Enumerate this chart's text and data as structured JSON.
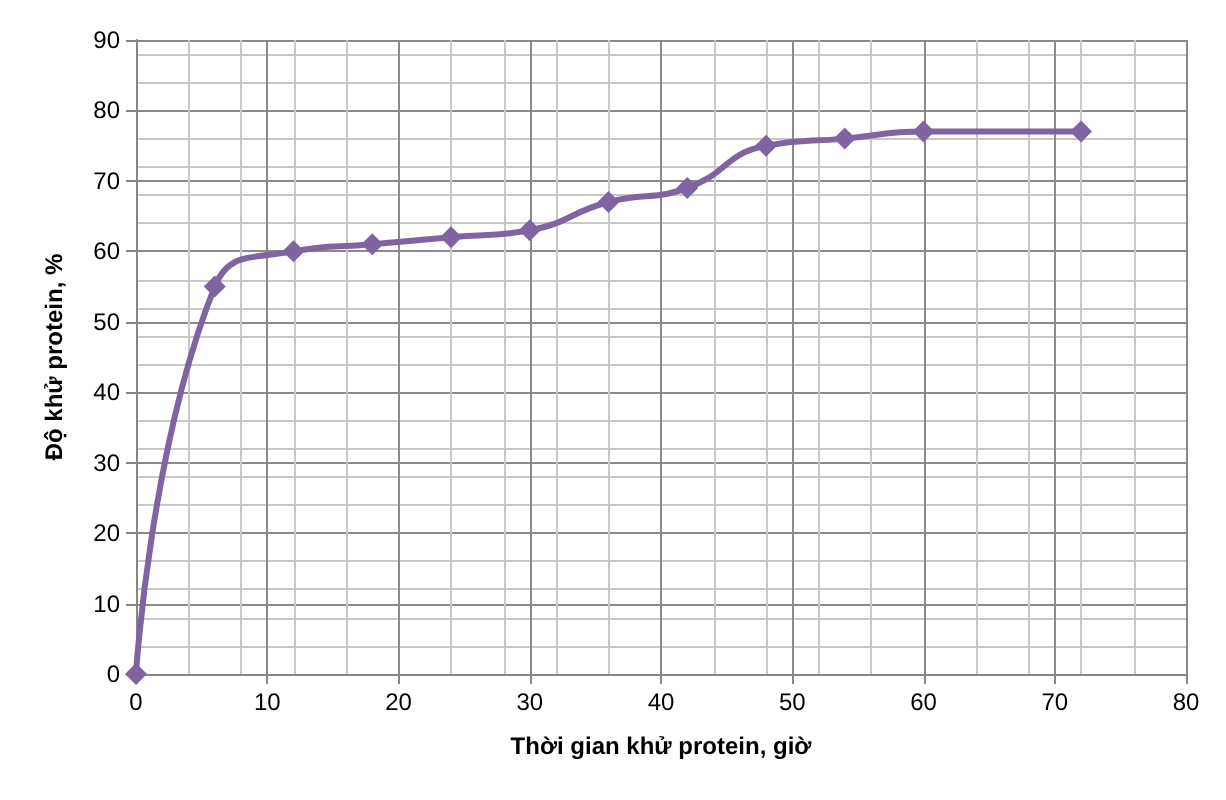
{
  "chart_data": {
    "type": "line",
    "xlabel": "Thời gian khử protein, giờ",
    "ylabel": "Độ khử protein, %",
    "x": [
      0,
      6,
      12,
      18,
      24,
      30,
      36,
      42,
      48,
      54,
      60,
      72
    ],
    "series": [
      {
        "color": "#8064a2",
        "values": [
          0,
          55,
          60,
          61,
          62,
          63,
          67,
          69,
          75,
          76,
          77,
          77
        ]
      }
    ],
    "xlim": [
      0,
      80
    ],
    "xticks": [
      0,
      10,
      20,
      30,
      40,
      50,
      60,
      70,
      80
    ],
    "ylim": [
      0,
      90
    ],
    "yticks": [
      0,
      10,
      20,
      30,
      40,
      50,
      60,
      70,
      80,
      90
    ],
    "grid": true,
    "marker": "diamond",
    "line_style": "solid"
  }
}
